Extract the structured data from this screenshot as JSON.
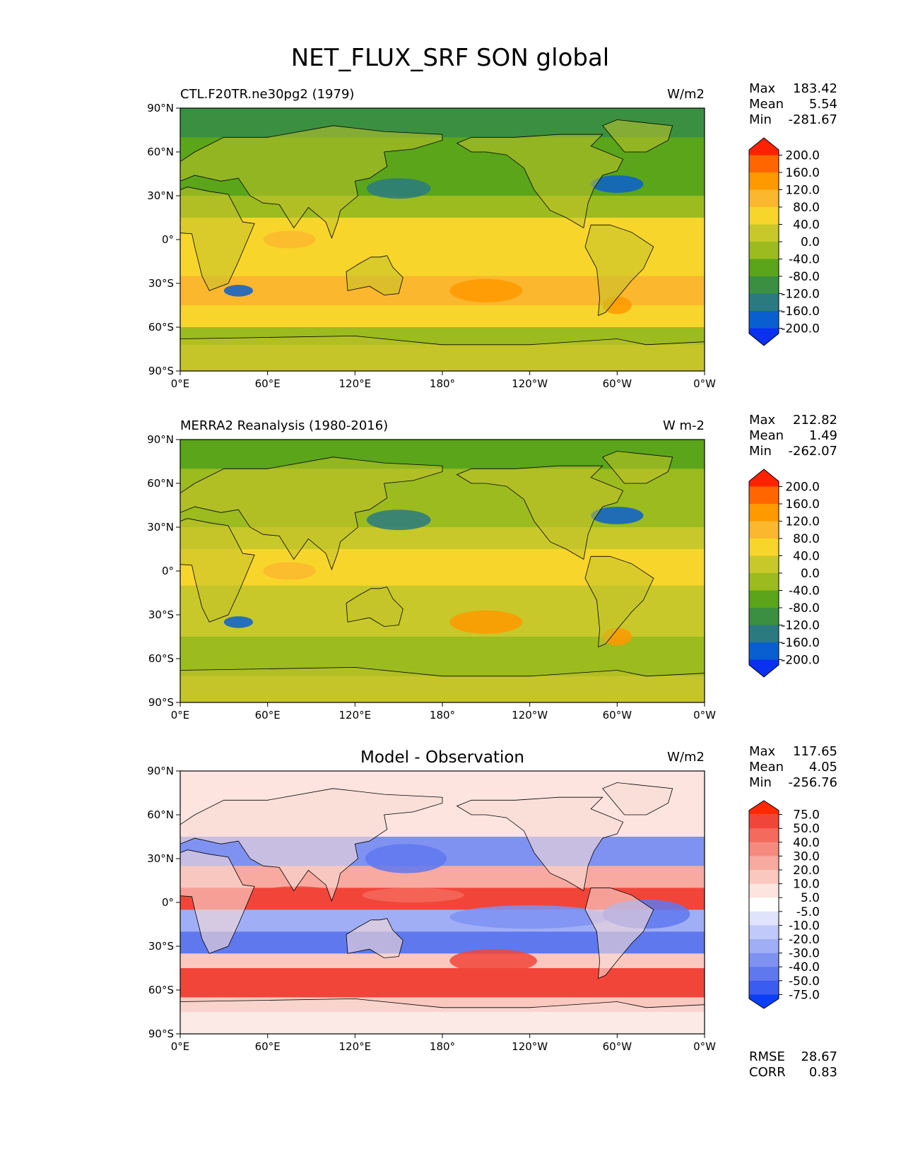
{
  "title": "NET_FLUX_SRF SON global",
  "axes": {
    "lat_ticks": [
      "90°N",
      "60°N",
      "30°N",
      "0°",
      "30°S",
      "60°S",
      "90°S"
    ],
    "lon_ticks": [
      "0°E",
      "60°E",
      "120°E",
      "180°",
      "120°W",
      "60°W",
      "0°W"
    ]
  },
  "chart_data": [
    {
      "type": "heatmap",
      "panel": "test",
      "left_title": "CTL.F20TR.ne30pg2 (1979)",
      "center_title": "",
      "units": "W/m2",
      "stats": [
        {
          "label": "Max",
          "value": "183.42"
        },
        {
          "label": "Mean",
          "value": "5.54"
        },
        {
          "label": "Min",
          "value": "-281.67"
        }
      ],
      "colorbar": {
        "labels": [
          "200.0",
          "160.0",
          "120.0",
          "80.0",
          "40.0",
          "0.0",
          "-40.0",
          "-80.0",
          "-120.0",
          "-160.0",
          "-200.0"
        ],
        "colors": [
          "#ff2200",
          "#ff6600",
          "#ff9900",
          "#fbb72e",
          "#f8d52b",
          "#c8c82a",
          "#9bbb1f",
          "#5aa51a",
          "#3a9040",
          "#2a7a80",
          "#0a5fd0",
          "#0a30f0"
        ]
      },
      "xlim": [
        0,
        360
      ],
      "ylim": [
        -90,
        90
      ]
    },
    {
      "type": "heatmap",
      "panel": "reference",
      "left_title": "MERRA2 Reanalysis (1980-2016)",
      "center_title": "",
      "units": "W m-2",
      "stats": [
        {
          "label": "Max",
          "value": "212.82"
        },
        {
          "label": "Mean",
          "value": "1.49"
        },
        {
          "label": "Min",
          "value": "-262.07"
        }
      ],
      "colorbar": {
        "labels": [
          "200.0",
          "160.0",
          "120.0",
          "80.0",
          "40.0",
          "0.0",
          "-40.0",
          "-80.0",
          "-120.0",
          "-160.0",
          "-200.0"
        ],
        "colors": [
          "#ff2200",
          "#ff6600",
          "#ff9900",
          "#fbb72e",
          "#f8d52b",
          "#c8c82a",
          "#9bbb1f",
          "#5aa51a",
          "#3a9040",
          "#2a7a80",
          "#0a5fd0",
          "#0a30f0"
        ]
      },
      "xlim": [
        0,
        360
      ],
      "ylim": [
        -90,
        90
      ]
    },
    {
      "type": "heatmap",
      "panel": "difference",
      "left_title": "",
      "center_title": "Model - Observation",
      "units": "W/m2",
      "stats": [
        {
          "label": "Max",
          "value": "117.65"
        },
        {
          "label": "Mean",
          "value": "4.05"
        },
        {
          "label": "Min",
          "value": "-256.76"
        }
      ],
      "extra_stats": [
        {
          "label": "RMSE",
          "value": "28.67"
        },
        {
          "label": "CORR",
          "value": "0.83"
        }
      ],
      "colorbar": {
        "labels": [
          "75.0",
          "50.0",
          "40.0",
          "30.0",
          "20.0",
          "10.0",
          "5.0",
          "-5.0",
          "-10.0",
          "-20.0",
          "-30.0",
          "-40.0",
          "-50.0",
          "-75.0"
        ],
        "colors": [
          "#ff2a00",
          "#f2453a",
          "#f46a5c",
          "#f68a7e",
          "#f8aaa0",
          "#fbc8c0",
          "#fde4df",
          "#ffffff",
          "#dfe4fc",
          "#c0c9fa",
          "#a0aef6",
          "#7f92f2",
          "#5f78ee",
          "#3b5cf0",
          "#0b3ff5"
        ]
      },
      "xlim": [
        0,
        360
      ],
      "ylim": [
        -90,
        90
      ]
    }
  ]
}
